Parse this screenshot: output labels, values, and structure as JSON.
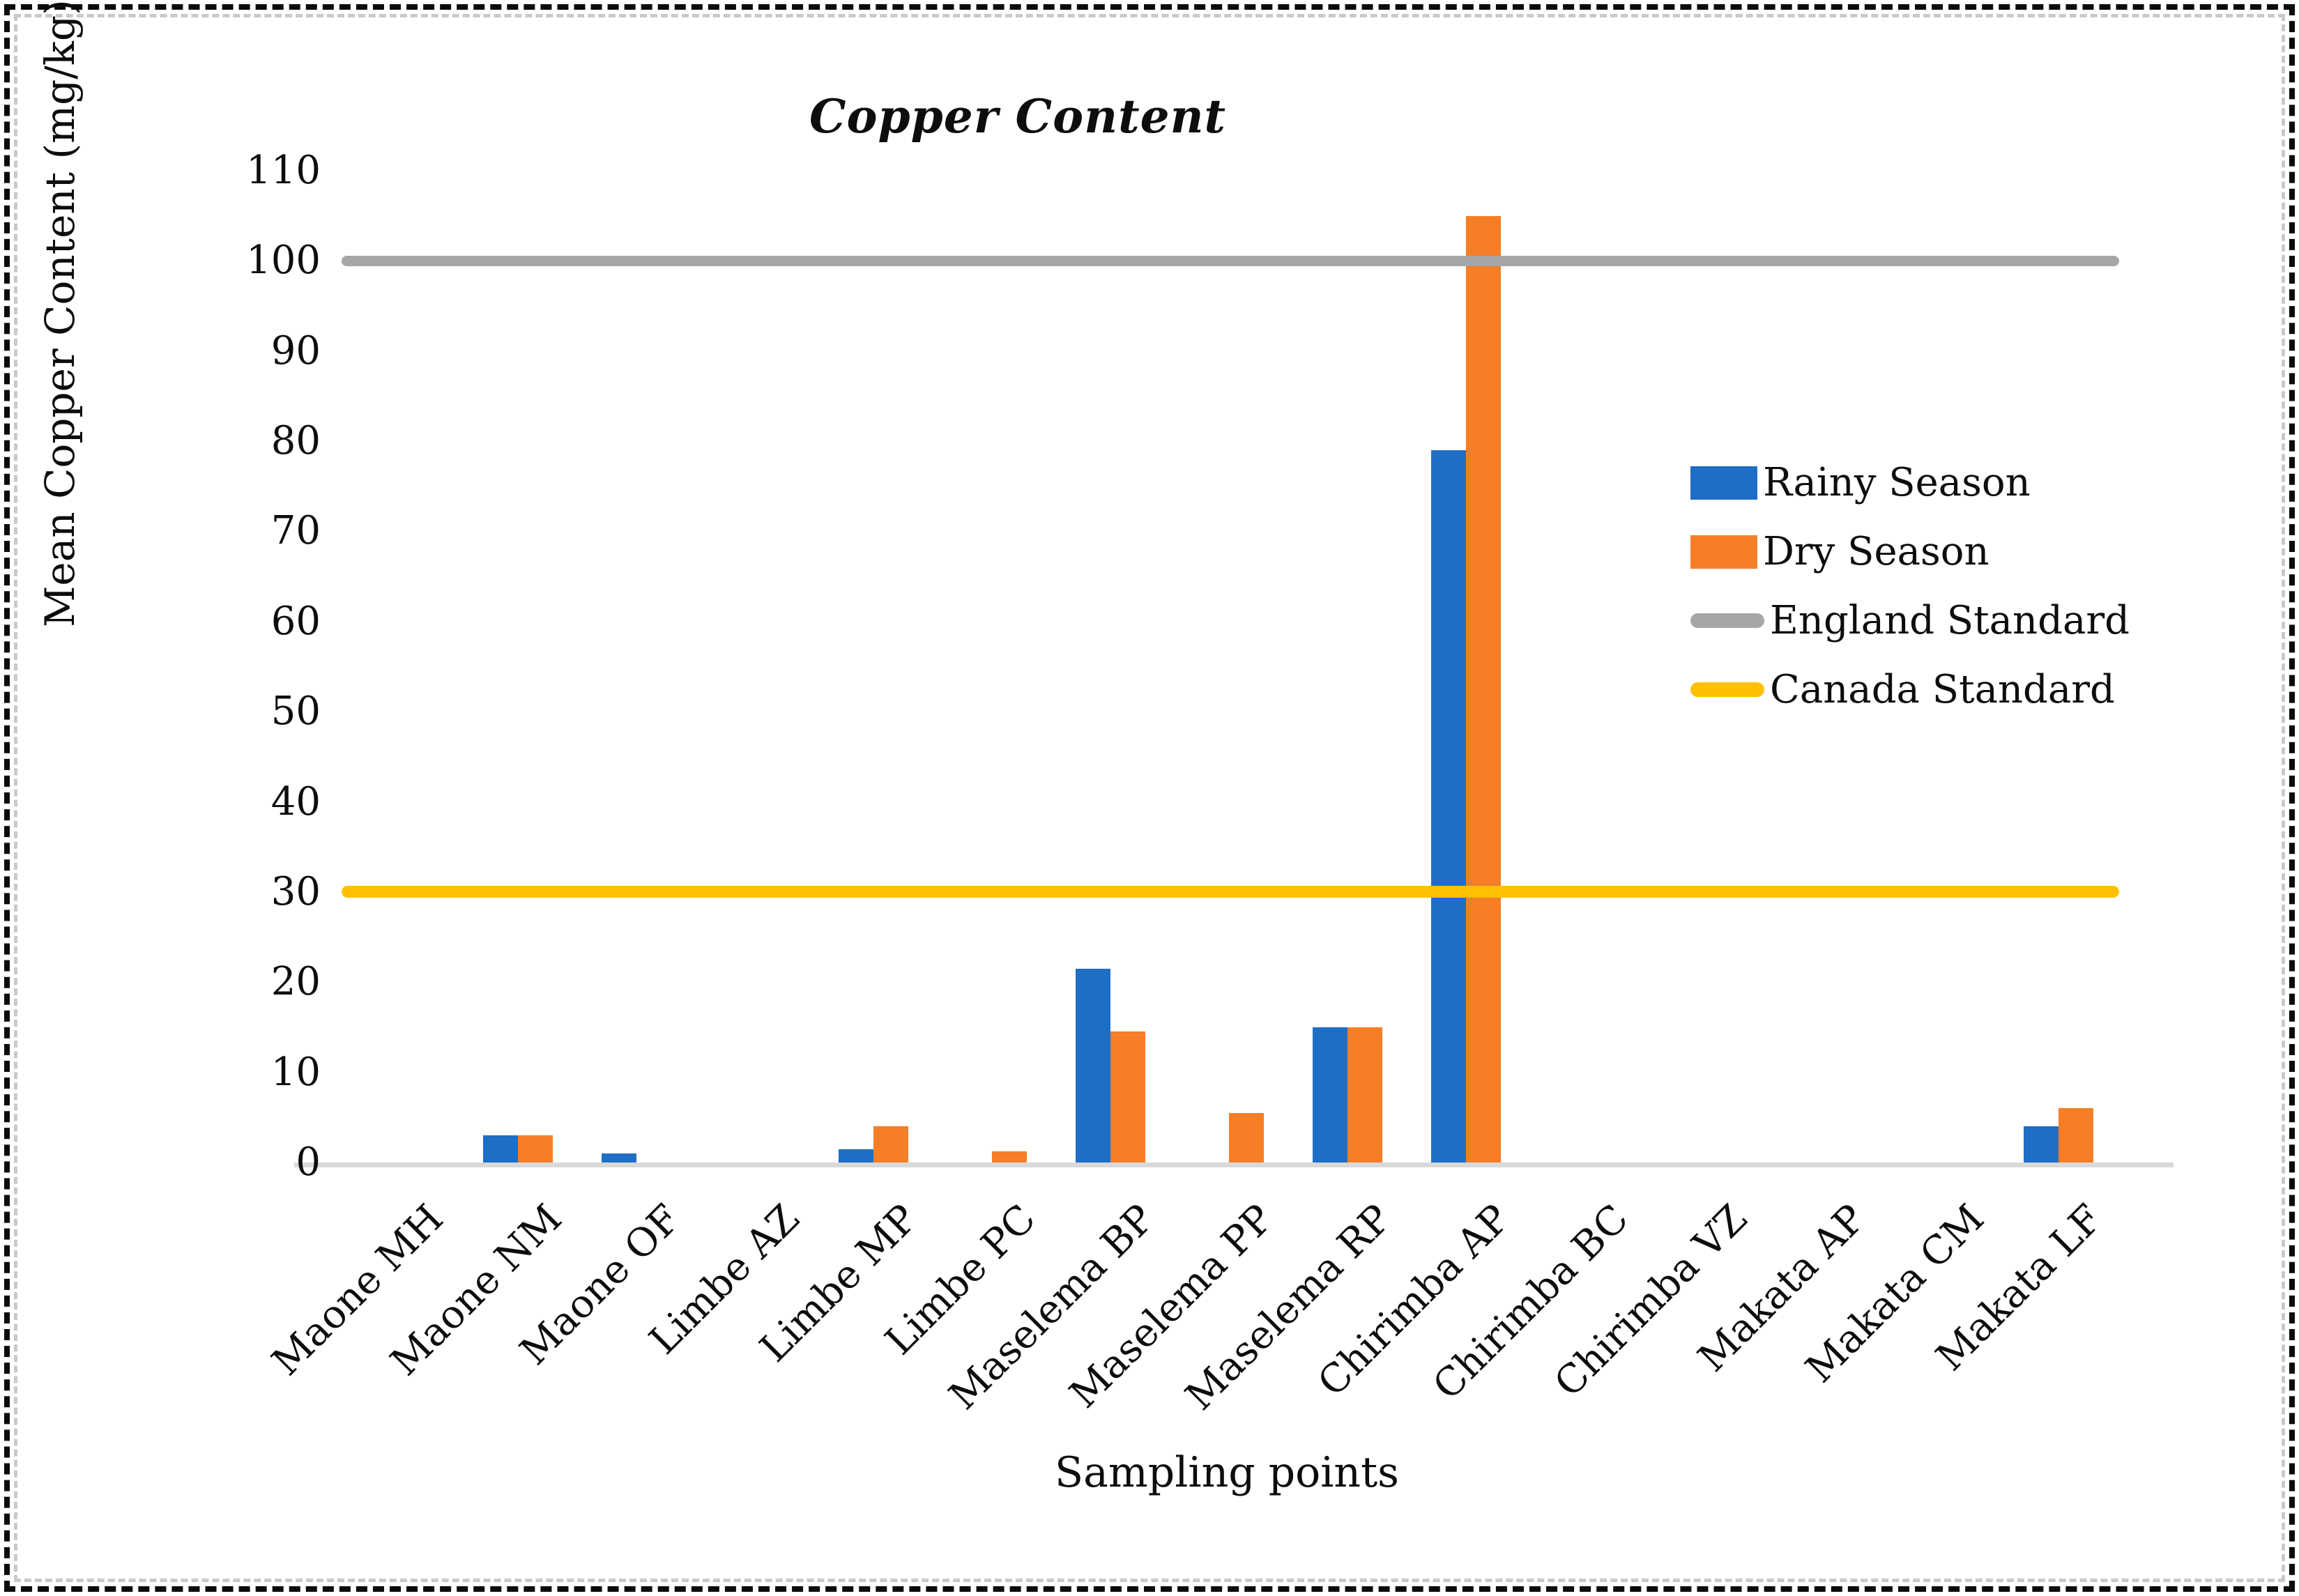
{
  "chart_data": {
    "type": "bar",
    "title": "Copper Content",
    "xlabel": "Sampling points",
    "ylabel": "Mean Copper Content (mg/kg)",
    "ylim": [
      0,
      110
    ],
    "ytick_step": 10,
    "grid": false,
    "legend_position": "inside-right",
    "categories": [
      "Maone MH",
      "Maone NM",
      "Maone OF",
      "Limbe AZ",
      "Limbe MP",
      "Limbe PC",
      "Maselema BP",
      "Maselema PP",
      "Maselema RP",
      "Chirimba AP",
      "Chirimba BC",
      "Chirimba VZ",
      "Makata AP",
      "Makata CM",
      "Makata LF"
    ],
    "series": [
      {
        "name": "Rainy Season",
        "color": "#1f6ec6",
        "values": [
          0,
          3,
          1,
          0,
          1.5,
          0,
          21.5,
          0,
          15,
          79,
          0,
          0,
          0,
          0,
          4
        ]
      },
      {
        "name": "Dry Season",
        "color": "#f57e27",
        "values": [
          0,
          3,
          0,
          0,
          4,
          1.2,
          14.5,
          5.5,
          15,
          105,
          0,
          0,
          0,
          0,
          6
        ]
      }
    ],
    "reference_lines": [
      {
        "name": "England Standard",
        "value": 100,
        "color": "#a6a6a6",
        "thickness": 15
      },
      {
        "name": "Canada Standard",
        "value": 30,
        "color": "#ffc000",
        "thickness": 17
      }
    ],
    "colors": {
      "baseline": "#d9d9d9",
      "text": "#0d0d0d"
    }
  }
}
